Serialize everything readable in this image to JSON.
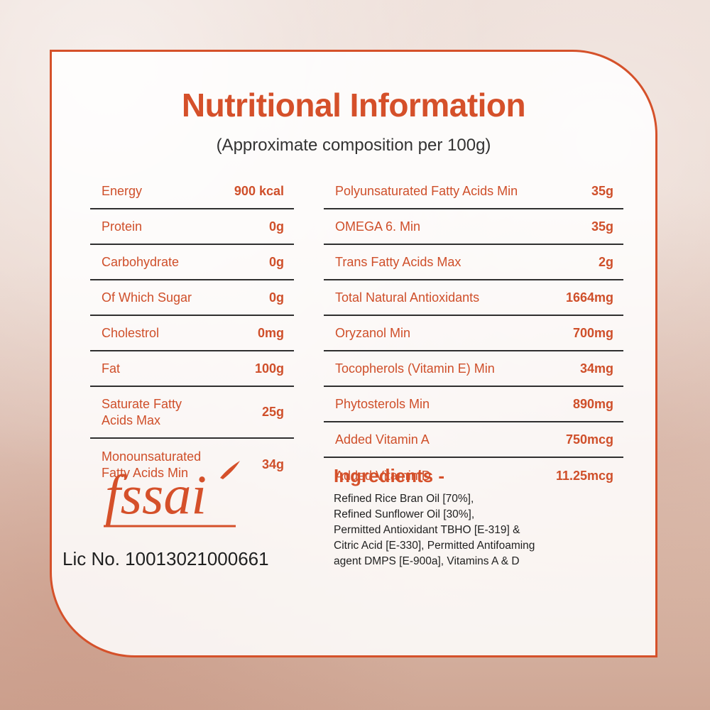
{
  "title": "Nutritional Information",
  "subtitle": "(Approximate composition per 100g)",
  "left_rows": [
    {
      "name": "Energy",
      "value": "900 kcal"
    },
    {
      "name": "Protein",
      "value": "0g"
    },
    {
      "name": "Carbohydrate",
      "value": "0g"
    },
    {
      "name": "Of Which Sugar",
      "value": "0g"
    },
    {
      "name": "Cholestrol",
      "value": "0mg"
    },
    {
      "name": "Fat",
      "value": "100g"
    },
    {
      "name": "Saturate Fatty\nAcids Max",
      "value": "25g"
    },
    {
      "name": "Monounsaturated\nFatty Acids Min",
      "value": "34g"
    }
  ],
  "right_rows": [
    {
      "name": "Polyunsaturated Fatty Acids Min",
      "value": "35g"
    },
    {
      "name": "OMEGA 6. Min",
      "value": "35g"
    },
    {
      "name": "Trans Fatty Acids Max",
      "value": "2g"
    },
    {
      "name": "Total Natural Antioxidants",
      "value": "1664mg"
    },
    {
      "name": "Oryzanol Min",
      "value": "700mg"
    },
    {
      "name": "Tocopherols (Vitamin E) Min",
      "value": "34mg"
    },
    {
      "name": "Phytosterols Min",
      "value": "890mg"
    },
    {
      "name": "Added Vitamin A",
      "value": "750mcg"
    },
    {
      "name": "Added Vitamin D",
      "value": "11.25mcg"
    }
  ],
  "fssai": {
    "logo_text": "fssai",
    "license": "Lic No. 10013021000661"
  },
  "ingredients": {
    "title": "Ingredients -",
    "text": "Refined Rice Bran Oil [70%],\nRefined Sunflower Oil [30%],\nPermitted Antioxidant TBHO [E-319] &\nCitric Acid [E-330], Permitted Antifoaming\nagent DMPS [E-900a], Vitamins A & D"
  },
  "colors": {
    "accent": "#d5502a",
    "text": "#1f1f1f"
  }
}
